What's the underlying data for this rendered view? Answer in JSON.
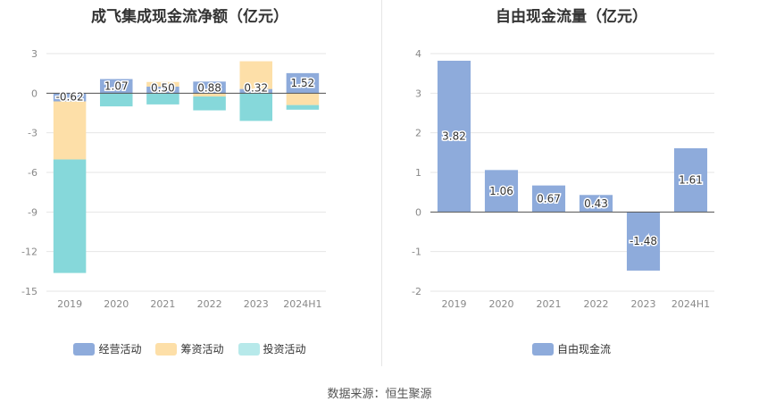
{
  "colors": {
    "operating": "#8eabdb",
    "financing": "#fddfa8",
    "investing": "#86d8da",
    "fcf": "#8eabdb",
    "grid": "#e6e6e6",
    "axis": "#888888"
  },
  "footer": "数据来源：恒生聚源",
  "chart_data": [
    {
      "type": "bar",
      "stacked": true,
      "title": "成飞集成现金流净额（亿元）",
      "categories": [
        "2019",
        "2020",
        "2021",
        "2022",
        "2023",
        "2024H1"
      ],
      "ylim": [
        -15,
        3
      ],
      "yticks": [
        3,
        0,
        -3,
        -6,
        -9,
        -12,
        -15
      ],
      "grid": true,
      "legend_position": "bottom",
      "series": [
        {
          "name": "经营活动",
          "key": "operating",
          "values": [
            -0.62,
            1.07,
            0.5,
            0.88,
            0.32,
            1.52
          ],
          "labels": [
            "-0.62",
            "1.07",
            "0.50",
            "0.88",
            "0.32",
            "1.52"
          ]
        },
        {
          "name": "筹资活动",
          "key": "financing",
          "values": [
            -4.4,
            0.0,
            0.35,
            -0.25,
            2.1,
            -0.9
          ]
        },
        {
          "name": "投资活动",
          "key": "investing",
          "values": [
            -8.6,
            -1.0,
            -0.85,
            -1.05,
            -2.1,
            -0.35
          ]
        }
      ]
    },
    {
      "type": "bar",
      "title": "自由现金流量（亿元）",
      "categories": [
        "2019",
        "2020",
        "2021",
        "2022",
        "2023",
        "2024H1"
      ],
      "ylim": [
        -2,
        4
      ],
      "yticks": [
        4,
        3,
        2,
        1,
        0,
        -1,
        -2
      ],
      "grid": true,
      "legend_position": "bottom",
      "series": [
        {
          "name": "自由现金流",
          "key": "fcf",
          "values": [
            3.82,
            1.06,
            0.67,
            0.43,
            -1.48,
            1.61
          ],
          "labels": [
            "3.82",
            "1.06",
            "0.67",
            "0.43",
            "-1.48",
            "1.61"
          ]
        }
      ]
    }
  ]
}
